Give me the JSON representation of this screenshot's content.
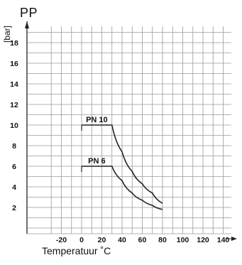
{
  "chart_data": {
    "type": "line",
    "title": "PP",
    "xlabel": "Temperatuur ˚C",
    "ylabel": "[bar]",
    "xlim": [
      -30,
      150
    ],
    "ylim": [
      0,
      20
    ],
    "x_ticks": [
      -20,
      0,
      20,
      40,
      60,
      80,
      100,
      120,
      140
    ],
    "y_ticks": [
      2,
      4,
      6,
      8,
      10,
      12,
      14,
      16,
      18
    ],
    "grid": true,
    "series": [
      {
        "name": "PN 10",
        "points": [
          [
            0,
            10
          ],
          [
            30,
            10
          ],
          [
            40,
            7.4
          ],
          [
            50,
            5.5
          ],
          [
            60,
            4.3
          ],
          [
            70,
            3.4
          ],
          [
            80,
            2.4
          ]
        ]
      },
      {
        "name": "PN 6",
        "points": [
          [
            0,
            6
          ],
          [
            30,
            6
          ],
          [
            40,
            4.6
          ],
          [
            50,
            3.4
          ],
          [
            60,
            2.7
          ],
          [
            70,
            2.2
          ],
          [
            80,
            1.8
          ]
        ]
      }
    ],
    "colors": {
      "grid": "#9a9a9a",
      "axis": "#222222",
      "line": "#222222",
      "text": "#111111"
    }
  }
}
